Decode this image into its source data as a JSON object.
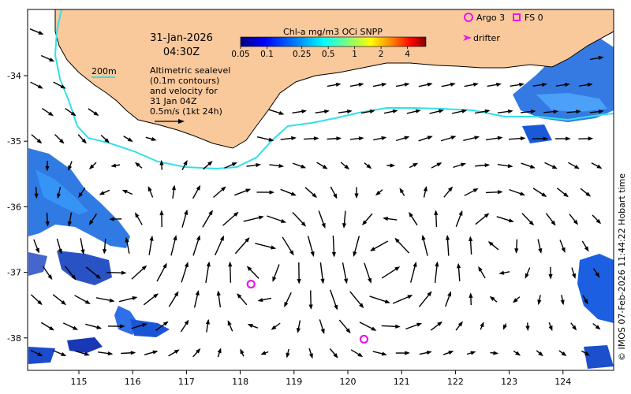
{
  "map": {
    "date_line": "31-Jan-2026",
    "time_line": "04:30Z",
    "contour_label": "200m",
    "info_lines": [
      "Altimetric sealevel",
      "(0.1m contours)",
      "and velocity for",
      "31 Jan 04Z"
    ],
    "scale_label": "0.5m/s (1kt 24h)",
    "credit": "© IMOS 07-Feb-2026 11:44:22 Hobart time",
    "colors": {
      "land": "#f9c89b",
      "contour": "#33e0e8",
      "marker": "#e619e6",
      "arrow": "#000000"
    },
    "x_ticks": [
      "115",
      "116",
      "117",
      "118",
      "119",
      "120",
      "121",
      "122",
      "123",
      "124"
    ],
    "y_ticks": [
      "-34",
      "-35",
      "-36",
      "-37",
      "-38"
    ]
  },
  "colorbar": {
    "title": "Chl-a mg/m3 OCi SNPP",
    "ticks": [
      "0.05",
      "0.1",
      "0.25",
      "0.5",
      "1",
      "2",
      "4"
    ],
    "colors": [
      "#00007f",
      "#0000ff",
      "#007fff",
      "#00ffff",
      "#7fff7f",
      "#ffff00",
      "#ff7f00",
      "#ff0000",
      "#7f0000"
    ]
  },
  "legend": {
    "argo": "Argo 3",
    "fs": "FS 0",
    "drifter": "drifter"
  },
  "markers": [
    {
      "name": "argo-float-1",
      "lon": 118.2,
      "lat": -37.18
    },
    {
      "name": "argo-float-2",
      "lon": 120.3,
      "lat": -38.02
    }
  ]
}
